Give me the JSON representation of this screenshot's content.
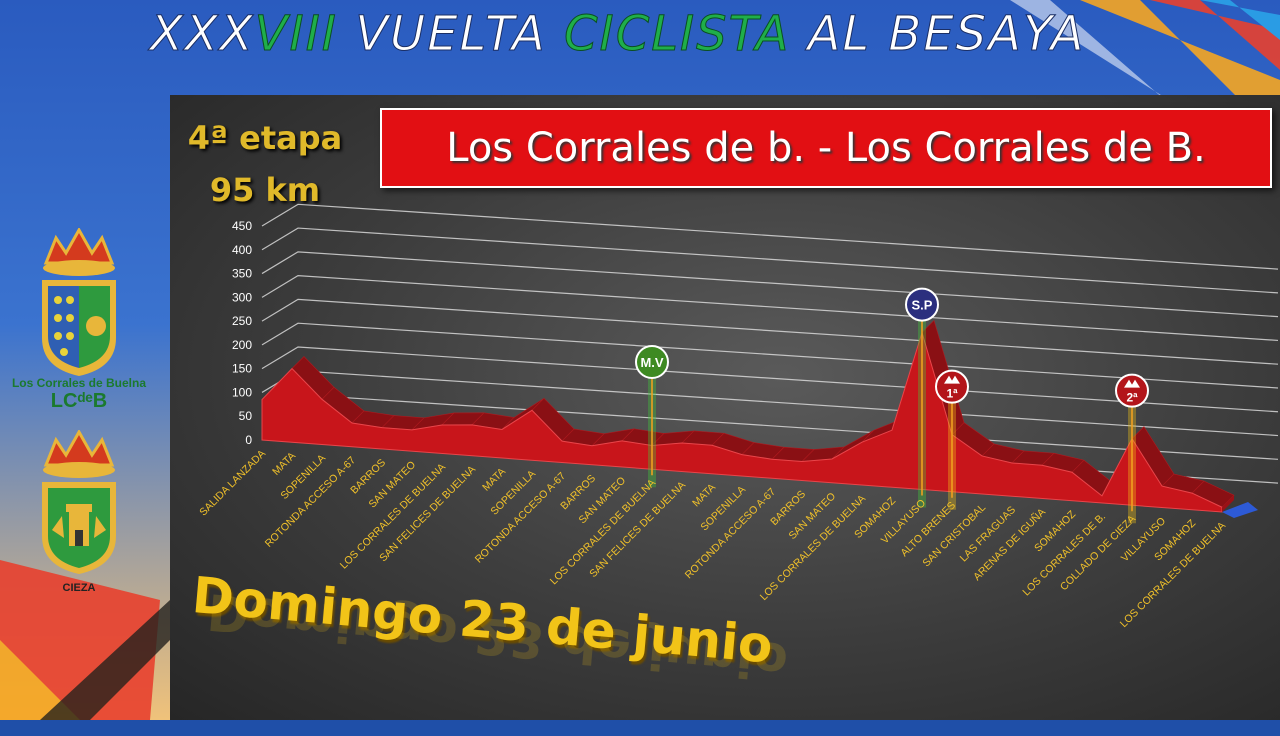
{
  "header": {
    "title_parts": [
      {
        "text": "XXX",
        "color": "white"
      },
      {
        "text": "VIII ",
        "color": "green"
      },
      {
        "text": "VUELTA ",
        "color": "white"
      },
      {
        "text": "CICLISTA",
        "color": "green"
      },
      {
        "text": " AL BESAYA",
        "color": "white"
      }
    ]
  },
  "stage": {
    "number": "4ª etapa",
    "distance": "95 km",
    "route": "Los Corrales de b. - Los Corrales de B.",
    "date": "Domingo 23 de junio"
  },
  "sidebar": {
    "crest_top_label": "Los Corrales de Buelna",
    "crest_top_monogram": "LCᵈᵉB",
    "crest_bottom_label": "CIEZA"
  },
  "colors": {
    "profile_front": "#c8151b",
    "profile_top": "#8a1014",
    "route_box": "#e20f13",
    "label_gold": "#f0c02a",
    "title_green": "#1fae4a",
    "mv_marker": "#3e8a22",
    "sp_marker": "#2b2f7e",
    "kom_marker": "#b3151a"
  },
  "chart_data": {
    "type": "area",
    "title": "",
    "xlabel": "",
    "ylabel": "",
    "ylim": [
      0,
      450
    ],
    "yticks": [
      0,
      50,
      100,
      150,
      200,
      250,
      300,
      350,
      400,
      450
    ],
    "grid": true,
    "categories": [
      "SALIDA LANZADA",
      "MATA",
      "SOPENILLA",
      "ROTONDA ACCESO A-67",
      "BARROS",
      "SAN MATEO",
      "LOS CORRALES DE BUELNA",
      "SAN FELICES DE BUELNA",
      "MATA",
      "SOPENILLA",
      "ROTONDA ACCESO A-67",
      "BARROS",
      "SAN MATEO",
      "LOS CORRALES DE BUELNA",
      "SAN FELICES DE BUELNA",
      "MATA",
      "SOPENILLA",
      "ROTONDA ACCESO A-67",
      "BARROS",
      "SAN MATEO",
      "LOS CORRALES DE BUELNA",
      "SOMAHOZ",
      "VILLAYUSO",
      "ALTO BRENES",
      "SAN CRISTOBAL",
      "LAS FRAGUAS",
      "ARENAS DE IGUÑA",
      "SOMAHOZ",
      "LOS CORRALES DE B.",
      "COLLADO DE CIEZA",
      "VILLAYUSO",
      "SOMAHOZ",
      "LOS CORRALES DE BUELNA"
    ],
    "series": [
      {
        "values": [
          85,
          155,
          95,
          50,
          45,
          45,
          60,
          65,
          60,
          105,
          45,
          40,
          55,
          50,
          60,
          60,
          45,
          40,
          40,
          50,
          90,
          120,
          330,
          120,
          80,
          70,
          70,
          60,
          15,
          140,
          45,
          35,
          10
        ]
      }
    ],
    "markers": [
      {
        "label": "M.V",
        "category_index": 13,
        "kind": "mv"
      },
      {
        "label": "S.P",
        "category_index": 22,
        "kind": "sp"
      },
      {
        "label": "1ª",
        "category_index": 23,
        "kind": "kom"
      },
      {
        "label": "2ª",
        "category_index": 29,
        "kind": "kom"
      }
    ]
  }
}
